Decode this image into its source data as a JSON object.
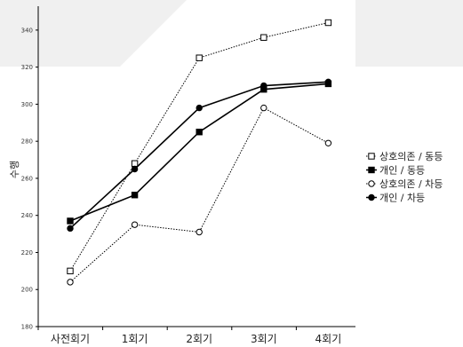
{
  "chart_data": {
    "type": "line",
    "categories": [
      "사전회기",
      "1회기",
      "2회기",
      "3회기",
      "4회기"
    ],
    "ylabel": "수행",
    "ylim": [
      180,
      350
    ],
    "yticks": [
      180,
      200,
      220,
      240,
      260,
      280,
      300,
      320,
      340
    ],
    "grid": false,
    "legend_position": "right",
    "series": [
      {
        "name": "상호의존 / 동등",
        "values": [
          210,
          268,
          325,
          336,
          344
        ],
        "line_style": "dotted",
        "marker": "open-square",
        "color": "#000000"
      },
      {
        "name": "개인 / 동등",
        "values": [
          237,
          251,
          285,
          308,
          311
        ],
        "line_style": "solid",
        "marker": "filled-square",
        "color": "#000000"
      },
      {
        "name": "상호의존 / 차등",
        "values": [
          204,
          235,
          231,
          298,
          279
        ],
        "line_style": "dotted",
        "marker": "open-circle",
        "color": "#000000"
      },
      {
        "name": "개인 / 차등",
        "values": [
          233,
          265,
          298,
          310,
          312
        ],
        "line_style": "solid",
        "marker": "filled-circle",
        "color": "#000000"
      }
    ]
  }
}
